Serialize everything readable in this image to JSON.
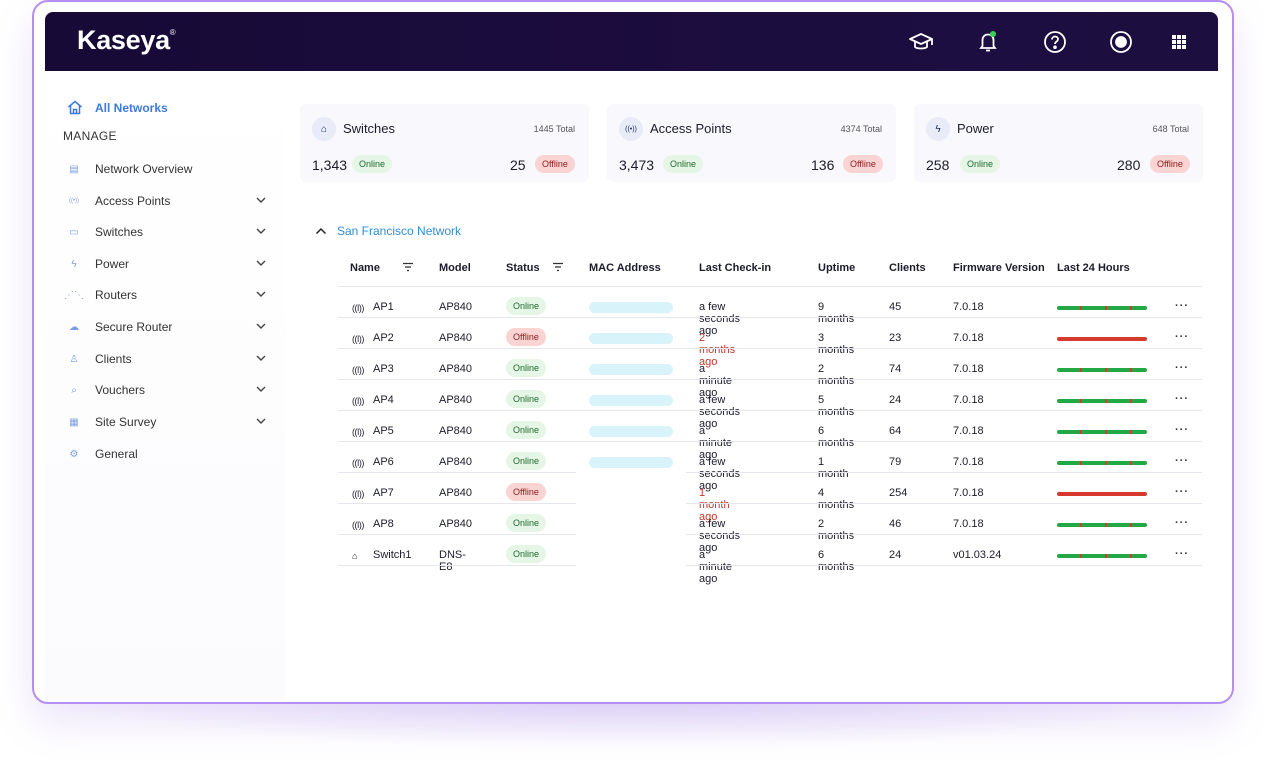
{
  "brand": {
    "logo": "Kaseya",
    "trademark": "®"
  },
  "header": {
    "icons": [
      "graduation-cap-icon",
      "bell-icon",
      "help-icon",
      "user-icon",
      "apps-grid-icon"
    ]
  },
  "sidebar": {
    "all_networks": "All Networks",
    "manage_label": "MANAGE",
    "items": [
      {
        "label": "Network Overview",
        "icon": "network-overview-icon"
      },
      {
        "label": "Access Points",
        "icon": "access-point-icon"
      },
      {
        "label": "Switches",
        "icon": "switch-icon"
      },
      {
        "label": "Power",
        "icon": "power-icon"
      },
      {
        "label": "Routers",
        "icon": "router-icon"
      },
      {
        "label": "Secure Router",
        "icon": "cloud-router-icon"
      },
      {
        "label": "Clients",
        "icon": "client-icon"
      },
      {
        "label": "Vouchers",
        "icon": "voucher-icon"
      },
      {
        "label": "Site Survey",
        "icon": "site-survey-icon"
      },
      {
        "label": "General",
        "icon": "settings-icon"
      }
    ]
  },
  "summary": [
    {
      "title": "Switches",
      "total": "1445 Total",
      "online": "1,343",
      "offline": "25",
      "online_label": "Online",
      "offline_label": "Offline"
    },
    {
      "title": "Access Points",
      "total": "4374 Total",
      "online": "3,473",
      "offline": "136",
      "online_label": "Online",
      "offline_label": "Offline"
    },
    {
      "title": "Power",
      "total": "648 Total",
      "online": "258",
      "offline": "280",
      "online_label": "Online",
      "offline_label": "Offline"
    }
  ],
  "network": {
    "name": "San Francisco Network"
  },
  "table": {
    "headers": [
      "Name",
      "Model",
      "Status",
      "MAC Address",
      "Last Check-in",
      "Uptime",
      "Clients",
      "Firmware Version",
      "Last 24 Hours"
    ],
    "more_label": "···",
    "rows": [
      {
        "name": "AP1",
        "model": "AP840",
        "status": "Online",
        "checkin": "a few seconds ago",
        "uptime": "9 months",
        "clients": "45",
        "firmware": "7.0.18",
        "history": "up"
      },
      {
        "name": "AP2",
        "model": "AP840",
        "status": "Offline",
        "checkin": "2 months ago",
        "uptime": "3 months",
        "clients": "23",
        "firmware": "7.0.18",
        "history": "down"
      },
      {
        "name": "AP3",
        "model": "AP840",
        "status": "Online",
        "checkin": "a minute ago",
        "uptime": "2 months",
        "clients": "74",
        "firmware": "7.0.18",
        "history": "up"
      },
      {
        "name": "AP4",
        "model": "AP840",
        "status": "Online",
        "checkin": "a few seconds ago",
        "uptime": "5 months",
        "clients": "24",
        "firmware": "7.0.18",
        "history": "up"
      },
      {
        "name": "AP5",
        "model": "AP840",
        "status": "Online",
        "checkin": "a minute ago",
        "uptime": "6 months",
        "clients": "64",
        "firmware": "7.0.18",
        "history": "up"
      },
      {
        "name": "AP6",
        "model": "AP840",
        "status": "Online",
        "checkin": "a few seconds ago",
        "uptime": "1 month",
        "clients": "79",
        "firmware": "7.0.18",
        "history": "up"
      },
      {
        "name": "AP7",
        "model": "AP840",
        "status": "Offline",
        "checkin": "1 month ago",
        "uptime": "4 months",
        "clients": "254",
        "firmware": "7.0.18",
        "history": "down"
      },
      {
        "name": "AP8",
        "model": "AP840",
        "status": "Online",
        "checkin": "a few seconds ago",
        "uptime": "2 months",
        "clients": "46",
        "firmware": "7.0.18",
        "history": "up"
      },
      {
        "name": "Switch1",
        "model": "DNS-E8",
        "status": "Online",
        "checkin": "a minute ago",
        "uptime": "6 months",
        "clients": "24",
        "firmware": "v01.03.24",
        "history": "up"
      }
    ]
  },
  "colors": {
    "accent": "#3d7be0",
    "online": "#22a845",
    "offline": "#d63a2f",
    "header": "#170a36"
  }
}
